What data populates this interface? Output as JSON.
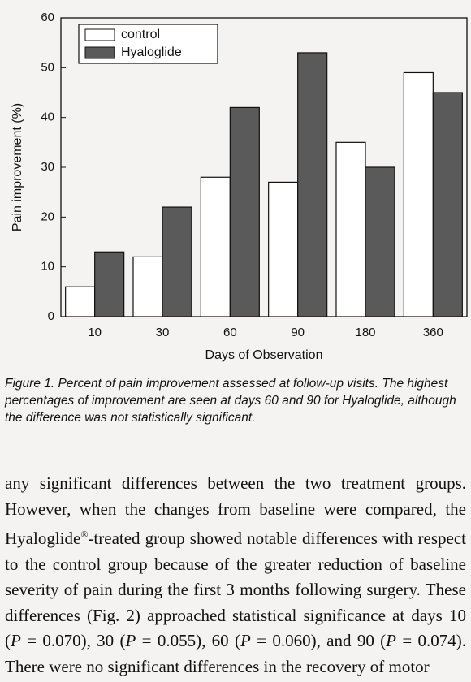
{
  "chart_data": {
    "type": "bar",
    "xlabel": "Days of Observation",
    "ylabel": "Pain improvement (%)",
    "categories": [
      "10",
      "30",
      "60",
      "90",
      "180",
      "360"
    ],
    "series": [
      {
        "name": "control",
        "color": "#ffffff",
        "values": [
          6,
          12,
          28,
          27,
          35,
          49
        ]
      },
      {
        "name": "Hyaloglide",
        "color": "#5a5a5a",
        "values": [
          13,
          22,
          42,
          53,
          30,
          45
        ]
      }
    ],
    "ylim": [
      0,
      60
    ],
    "yticks": [
      0,
      10,
      20,
      30,
      40,
      50,
      60
    ],
    "legend": "upper left"
  },
  "caption": "Figure 1. Percent of pain improvement assessed at follow-up visits. The highest percentages of improvement are seen at days 60 and 90 for Hyaloglide, although the difference was not statistically significant.",
  "body": {
    "runs": [
      "any significant differences between the two treatment groups. However, when the changes from baseline were compared, the Hyaloglide",
      "®",
      "-treated group showed notable differences with respect to the control group because of the greater reduction of baseline severity of pain during the first 3 months following surgery. These differences (Fig. 2) approached statistical significance at days 10 (",
      "P",
      " = 0.070), 30 (",
      "P",
      " = 0.055), 60 (",
      "P",
      " = 0.060), and 90 (",
      "P",
      " = 0.074). There were no significant differences in the recovery of motor"
    ]
  }
}
